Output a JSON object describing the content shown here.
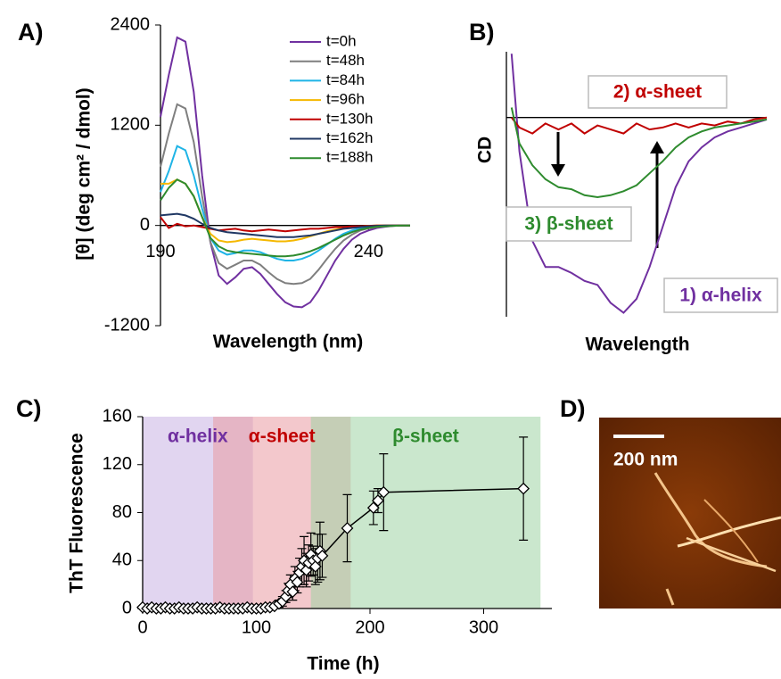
{
  "chart_data": [
    {
      "type": "line",
      "panel": "A)",
      "xlabel": "Wavelength (nm)",
      "ylabel": "[θ] (deg cm² / dmol)",
      "x": [
        190,
        192,
        194,
        196,
        198,
        200,
        202,
        204,
        206,
        208,
        210,
        212,
        214,
        216,
        218,
        220,
        222,
        224,
        226,
        228,
        230,
        232,
        234,
        236,
        238,
        240,
        242,
        244,
        246,
        248,
        250
      ],
      "xlim": [
        190,
        250
      ],
      "xticks": [
        190,
        240
      ],
      "ylim": [
        -1200,
        2400
      ],
      "yticks": [
        -1200,
        0,
        1200,
        2400
      ],
      "legend": "upper right",
      "series": [
        {
          "name": "t=0h",
          "color": "#7030a0",
          "values": [
            1300,
            1800,
            2250,
            2200,
            1600,
            600,
            -200,
            -600,
            -700,
            -620,
            -520,
            -500,
            -580,
            -700,
            -820,
            -920,
            -970,
            -980,
            -920,
            -780,
            -600,
            -420,
            -280,
            -170,
            -100,
            -60,
            -30,
            -15,
            -5,
            0,
            0
          ]
        },
        {
          "name": "t=48h",
          "color": "#7f7f7f",
          "values": [
            700,
            1100,
            1450,
            1400,
            1000,
            350,
            -200,
            -450,
            -520,
            -470,
            -420,
            -420,
            -470,
            -560,
            -640,
            -690,
            -700,
            -690,
            -640,
            -530,
            -400,
            -280,
            -180,
            -110,
            -60,
            -35,
            -20,
            -10,
            -5,
            0,
            0
          ]
        },
        {
          "name": "t=84h",
          "color": "#1fb4e6",
          "values": [
            400,
            650,
            950,
            900,
            600,
            200,
            -150,
            -300,
            -350,
            -330,
            -300,
            -300,
            -320,
            -360,
            -400,
            -420,
            -420,
            -400,
            -360,
            -300,
            -230,
            -160,
            -100,
            -60,
            -35,
            -20,
            -10,
            -5,
            0,
            0,
            0
          ]
        },
        {
          "name": "t=96h",
          "color": "#f5b800",
          "values": [
            500,
            500,
            550,
            500,
            350,
            100,
            -100,
            -180,
            -200,
            -190,
            -170,
            -160,
            -170,
            -180,
            -190,
            -190,
            -180,
            -160,
            -130,
            -100,
            -70,
            -50,
            -30,
            -20,
            -10,
            -5,
            0,
            0,
            0,
            0,
            0
          ]
        },
        {
          "name": "t=130h",
          "color": "#c00000",
          "values": [
            100,
            -30,
            20,
            -10,
            0,
            -20,
            -40,
            -60,
            -50,
            -40,
            -60,
            -70,
            -60,
            -50,
            -60,
            -70,
            -60,
            -50,
            -40,
            -40,
            -30,
            -20,
            -20,
            -10,
            -10,
            -5,
            0,
            0,
            0,
            0,
            0
          ]
        },
        {
          "name": "t=162h",
          "color": "#203864",
          "values": [
            120,
            130,
            140,
            120,
            80,
            20,
            -30,
            -60,
            -80,
            -90,
            -100,
            -110,
            -120,
            -130,
            -140,
            -140,
            -140,
            -130,
            -120,
            -100,
            -80,
            -60,
            -40,
            -30,
            -20,
            -10,
            -5,
            0,
            0,
            0,
            0
          ]
        },
        {
          "name": "t=188h",
          "color": "#2e8b2e",
          "values": [
            300,
            450,
            550,
            500,
            350,
            100,
            -150,
            -250,
            -300,
            -320,
            -330,
            -340,
            -350,
            -360,
            -370,
            -370,
            -360,
            -340,
            -310,
            -270,
            -220,
            -170,
            -120,
            -80,
            -50,
            -30,
            -15,
            -10,
            -5,
            0,
            0
          ]
        }
      ]
    },
    {
      "type": "line",
      "panel": "B)",
      "xlabel": "Wavelength",
      "ylabel": "CD",
      "x": [
        2,
        5,
        10,
        15,
        20,
        25,
        30,
        35,
        40,
        45,
        50,
        55,
        60,
        65,
        70,
        75,
        80,
        85,
        90,
        95,
        100
      ],
      "xlim": [
        0,
        100
      ],
      "ylim": [
        -100,
        33
      ],
      "series": [
        {
          "name": "1) α-helix",
          "color": "#7030a0",
          "values": [
            32,
            -17,
            -62,
            -75,
            -75,
            -78,
            -82,
            -84,
            -93,
            -98,
            -91,
            -75,
            -55,
            -35,
            -22,
            -15,
            -10,
            -7,
            -5,
            -3,
            -1
          ]
        },
        {
          "name": "2) α-sheet",
          "color": "#c00000",
          "values": [
            0,
            -5,
            -8,
            -3,
            -6,
            -3,
            -8,
            -4,
            -6,
            -8,
            -3,
            -6,
            -5,
            -3,
            -5,
            -3,
            -4,
            -2,
            -3,
            -1,
            0
          ]
        },
        {
          "name": "3) β-sheet",
          "color": "#2e8b2e",
          "values": [
            5,
            -13,
            -24,
            -31,
            -35,
            -36,
            -39,
            -40,
            -39,
            -37,
            -34,
            -28,
            -22,
            -15,
            -10,
            -7,
            -5,
            -4,
            -3,
            -2,
            -1
          ]
        }
      ]
    },
    {
      "type": "scatter",
      "panel": "C)",
      "xlabel": "Time (h)",
      "ylabel": "ThT Fluorescence",
      "xlim": [
        0,
        360
      ],
      "xticks": [
        0,
        100,
        200,
        300
      ],
      "ylim": [
        0,
        160
      ],
      "yticks": [
        0,
        40,
        80,
        120,
        160
      ],
      "regions": [
        {
          "label": "α-helix",
          "start": 0,
          "end": 97,
          "color": "#c9b3e3",
          "label_color": "#7030a0"
        },
        {
          "label": "α-sheet",
          "start": 62,
          "end": 183,
          "color": "#e99aa3",
          "label_color": "#c00000"
        },
        {
          "label": "β-sheet",
          "start": 148,
          "end": 350,
          "color": "#9fd4a4",
          "label_color": "#2e8b2e"
        }
      ],
      "x": [
        0,
        4,
        8,
        12,
        16,
        20,
        24,
        28,
        32,
        36,
        40,
        44,
        48,
        52,
        56,
        60,
        64,
        68,
        72,
        76,
        80,
        84,
        88,
        92,
        96,
        100,
        104,
        108,
        112,
        116,
        120,
        123,
        126,
        128,
        130,
        132,
        134,
        136,
        138,
        140,
        142,
        144,
        146,
        148,
        150,
        152,
        154,
        156,
        158,
        180,
        203,
        207,
        212,
        335
      ],
      "values": [
        1,
        0,
        1,
        0,
        0,
        1,
        0,
        0,
        1,
        0,
        0,
        0,
        1,
        0,
        0,
        0,
        0,
        1,
        0,
        0,
        0,
        0,
        0,
        1,
        0,
        0,
        0,
        1,
        1,
        2,
        4,
        6,
        10,
        15,
        20,
        14,
        25,
        22,
        30,
        35,
        40,
        32,
        38,
        45,
        40,
        35,
        42,
        48,
        44,
        67,
        84,
        90,
        97,
        100
      ],
      "errors": [
        1,
        1,
        1,
        1,
        1,
        1,
        1,
        1,
        1,
        1,
        1,
        1,
        1,
        1,
        1,
        1,
        1,
        1,
        1,
        1,
        1,
        1,
        1,
        1,
        1,
        1,
        1,
        1,
        1,
        2,
        3,
        4,
        5,
        6,
        8,
        7,
        10,
        9,
        12,
        15,
        20,
        14,
        15,
        18,
        12,
        15,
        20,
        24,
        18,
        28,
        14,
        10,
        32,
        43
      ]
    },
    {
      "type": "image",
      "panel": "D)",
      "scale_bar": "200 nm"
    }
  ]
}
